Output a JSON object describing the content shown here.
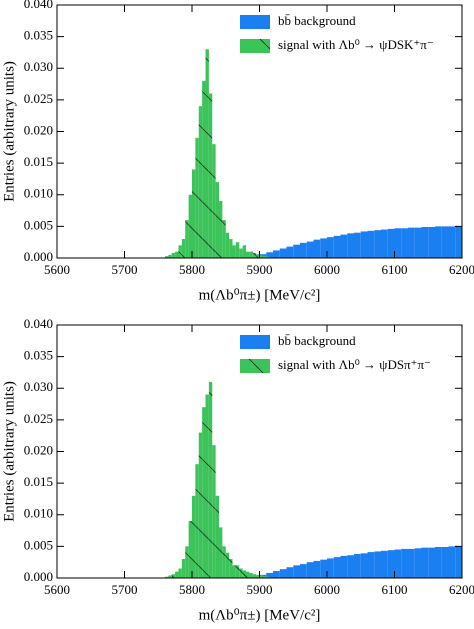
{
  "chart_data": [
    {
      "type": "histogram",
      "xlabel": "m(Λb⁰π±) [MeV/c²]",
      "ylabel": "Entries (arbitrary units)",
      "xlim": [
        5600,
        6200
      ],
      "xticks": [
        5600,
        5700,
        5800,
        5900,
        6000,
        6100,
        6200
      ],
      "ylim": [
        0,
        0.04
      ],
      "yticks": [
        {
          "value": 0,
          "label": "0.000"
        },
        {
          "value": 0.005,
          "label": "0.005"
        },
        {
          "value": 0.01,
          "label": "0.010"
        },
        {
          "value": 0.015,
          "label": "0.015"
        },
        {
          "value": 0.02,
          "label": "0.020"
        },
        {
          "value": 0.025,
          "label": "0.025"
        },
        {
          "value": 0.03,
          "label": "0.030"
        },
        {
          "value": 0.035,
          "label": "0.035"
        },
        {
          "value": 0.04,
          "label": "0.040"
        }
      ],
      "legend": "upper right",
      "series": [
        {
          "name": "bb̄ background",
          "color": "#1a7ff0",
          "hatch": false,
          "bins": [
            5880,
            5890,
            5900,
            5910,
            5920,
            5930,
            5940,
            5950,
            5960,
            5970,
            5980,
            5990,
            6000,
            6010,
            6020,
            6030,
            6040,
            6050,
            6060,
            6070,
            6080,
            6090,
            6100,
            6110,
            6120,
            6130,
            6140,
            6150,
            6160,
            6170,
            6180,
            6190,
            6200
          ],
          "values": [
            0.0001,
            0.0003,
            0.0006,
            0.0009,
            0.0012,
            0.0015,
            0.0018,
            0.0021,
            0.0024,
            0.0026,
            0.0029,
            0.0031,
            0.0033,
            0.0035,
            0.0037,
            0.0039,
            0.004,
            0.0042,
            0.0043,
            0.0044,
            0.0045,
            0.0046,
            0.0047,
            0.0047,
            0.0048,
            0.0048,
            0.0049,
            0.0049,
            0.005,
            0.005,
            0.005,
            0.005
          ]
        },
        {
          "name": "signal with Λb⁰ → ψDSK⁺π⁻",
          "color": "#3cc45a",
          "hatch": true,
          "bins": [
            5760,
            5765,
            5770,
            5775,
            5780,
            5785,
            5790,
            5795,
            5800,
            5805,
            5810,
            5815,
            5820,
            5825,
            5830,
            5835,
            5840,
            5845,
            5850,
            5855,
            5860,
            5865,
            5870,
            5875,
            5880,
            5885,
            5890,
            5895,
            5900,
            5905,
            5910,
            5915,
            5920
          ],
          "values": [
            0.0003,
            0.0005,
            0.0008,
            0.001,
            0.002,
            0.003,
            0.006,
            0.01,
            0.014,
            0.019,
            0.024,
            0.028,
            0.033,
            0.026,
            0.018,
            0.012,
            0.009,
            0.006,
            0.004,
            0.003,
            0.002,
            0.0025,
            0.0015,
            0.002,
            0.001,
            0.001,
            0.0008,
            0.0006,
            0.0004,
            0.0003,
            0.0002,
            0.0001
          ]
        }
      ]
    },
    {
      "type": "histogram",
      "xlabel": "m(Λb⁰π±) [MeV/c²]",
      "ylabel": "Entries (arbitrary units)",
      "xlim": [
        5600,
        6200
      ],
      "xticks": [
        5600,
        5700,
        5800,
        5900,
        6000,
        6100,
        6200
      ],
      "ylim": [
        0,
        0.04
      ],
      "yticks": [
        {
          "value": 0,
          "label": "0.000"
        },
        {
          "value": 0.005,
          "label": "0.005"
        },
        {
          "value": 0.01,
          "label": "0.010"
        },
        {
          "value": 0.015,
          "label": "0.015"
        },
        {
          "value": 0.02,
          "label": "0.020"
        },
        {
          "value": 0.025,
          "label": "0.025"
        },
        {
          "value": 0.03,
          "label": "0.030"
        },
        {
          "value": 0.035,
          "label": "0.035"
        },
        {
          "value": 0.04,
          "label": "0.040"
        }
      ],
      "legend": "upper right",
      "series": [
        {
          "name": "bb̄ background",
          "color": "#1a7ff0",
          "hatch": false,
          "bins": [
            5880,
            5890,
            5900,
            5910,
            5920,
            5930,
            5940,
            5950,
            5960,
            5970,
            5980,
            5990,
            6000,
            6010,
            6020,
            6030,
            6040,
            6050,
            6060,
            6070,
            6080,
            6090,
            6100,
            6110,
            6120,
            6130,
            6140,
            6150,
            6160,
            6170,
            6180,
            6190,
            6200
          ],
          "values": [
            0.0001,
            0.0003,
            0.0005,
            0.0008,
            0.0011,
            0.0014,
            0.0017,
            0.002,
            0.0022,
            0.0025,
            0.0027,
            0.0029,
            0.0031,
            0.0033,
            0.0035,
            0.0036,
            0.0038,
            0.0039,
            0.0041,
            0.0042,
            0.0043,
            0.0044,
            0.0045,
            0.0046,
            0.0046,
            0.0047,
            0.0048,
            0.0048,
            0.0049,
            0.0049,
            0.005,
            0.005
          ]
        },
        {
          "name": "signal with Λb⁰ → ψDSπ⁺π⁻",
          "color": "#3cc45a",
          "hatch": true,
          "bins": [
            5760,
            5765,
            5770,
            5775,
            5780,
            5785,
            5790,
            5795,
            5800,
            5805,
            5810,
            5815,
            5820,
            5825,
            5830,
            5835,
            5840,
            5845,
            5850,
            5855,
            5860,
            5865,
            5870,
            5875,
            5880,
            5885,
            5890,
            5895,
            5900,
            5905,
            5910,
            5915,
            5920
          ],
          "values": [
            0.0002,
            0.0004,
            0.0006,
            0.001,
            0.0015,
            0.003,
            0.005,
            0.009,
            0.013,
            0.018,
            0.023,
            0.027,
            0.029,
            0.031,
            0.021,
            0.013,
            0.008,
            0.005,
            0.004,
            0.003,
            0.002,
            0.002,
            0.0015,
            0.0012,
            0.001,
            0.0008,
            0.0006,
            0.0005,
            0.0004,
            0.0003,
            0.0002,
            0.0001
          ]
        }
      ]
    }
  ]
}
